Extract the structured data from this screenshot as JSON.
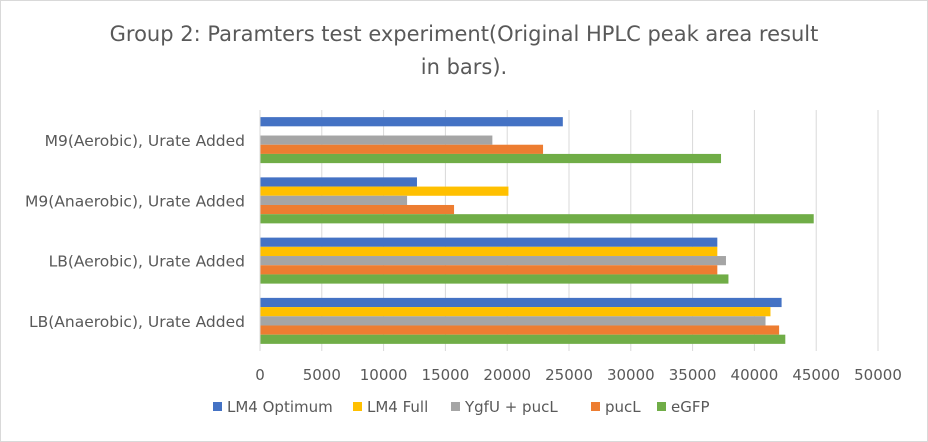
{
  "chart_data": {
    "type": "bar",
    "orientation": "horizontal",
    "title_lines": [
      "Group 2: Paramters test experiment(Original HPLC peak area result",
      "in bars)."
    ],
    "categories": [
      "M9(Aerobic), Urate Added",
      "M9(Anaerobic), Urate Added",
      "LB(Aerobic), Urate Added",
      "LB(Anaerobic), Urate Added"
    ],
    "series": [
      {
        "name": "LM4 Optimum",
        "color": "#4472c4",
        "values": [
          24500,
          12700,
          37000,
          42200
        ]
      },
      {
        "name": "LM4 Full",
        "color": "#ffc000",
        "values": [
          null,
          20100,
          37000,
          41300
        ]
      },
      {
        "name": "YgfU + pucL",
        "color": "#a5a5a5",
        "values": [
          18800,
          11900,
          37700,
          40900
        ]
      },
      {
        "name": "pucL",
        "color": "#ed7d31",
        "values": [
          22900,
          15700,
          37000,
          42000
        ]
      },
      {
        "name": "eGFP",
        "color": "#70ad47",
        "values": [
          37300,
          44800,
          37900,
          42500
        ]
      }
    ],
    "xlim": [
      0,
      50000
    ],
    "xticks": [
      0,
      5000,
      10000,
      15000,
      20000,
      25000,
      30000,
      35000,
      40000,
      45000,
      50000
    ],
    "xtick_labels": [
      "0",
      "5000",
      "10000",
      "15000",
      "20000",
      "25000",
      "30000",
      "35000",
      "40000",
      "45000",
      "50000"
    ],
    "xlabel": "",
    "ylabel": "",
    "grid": true,
    "legend_position": "bottom"
  }
}
